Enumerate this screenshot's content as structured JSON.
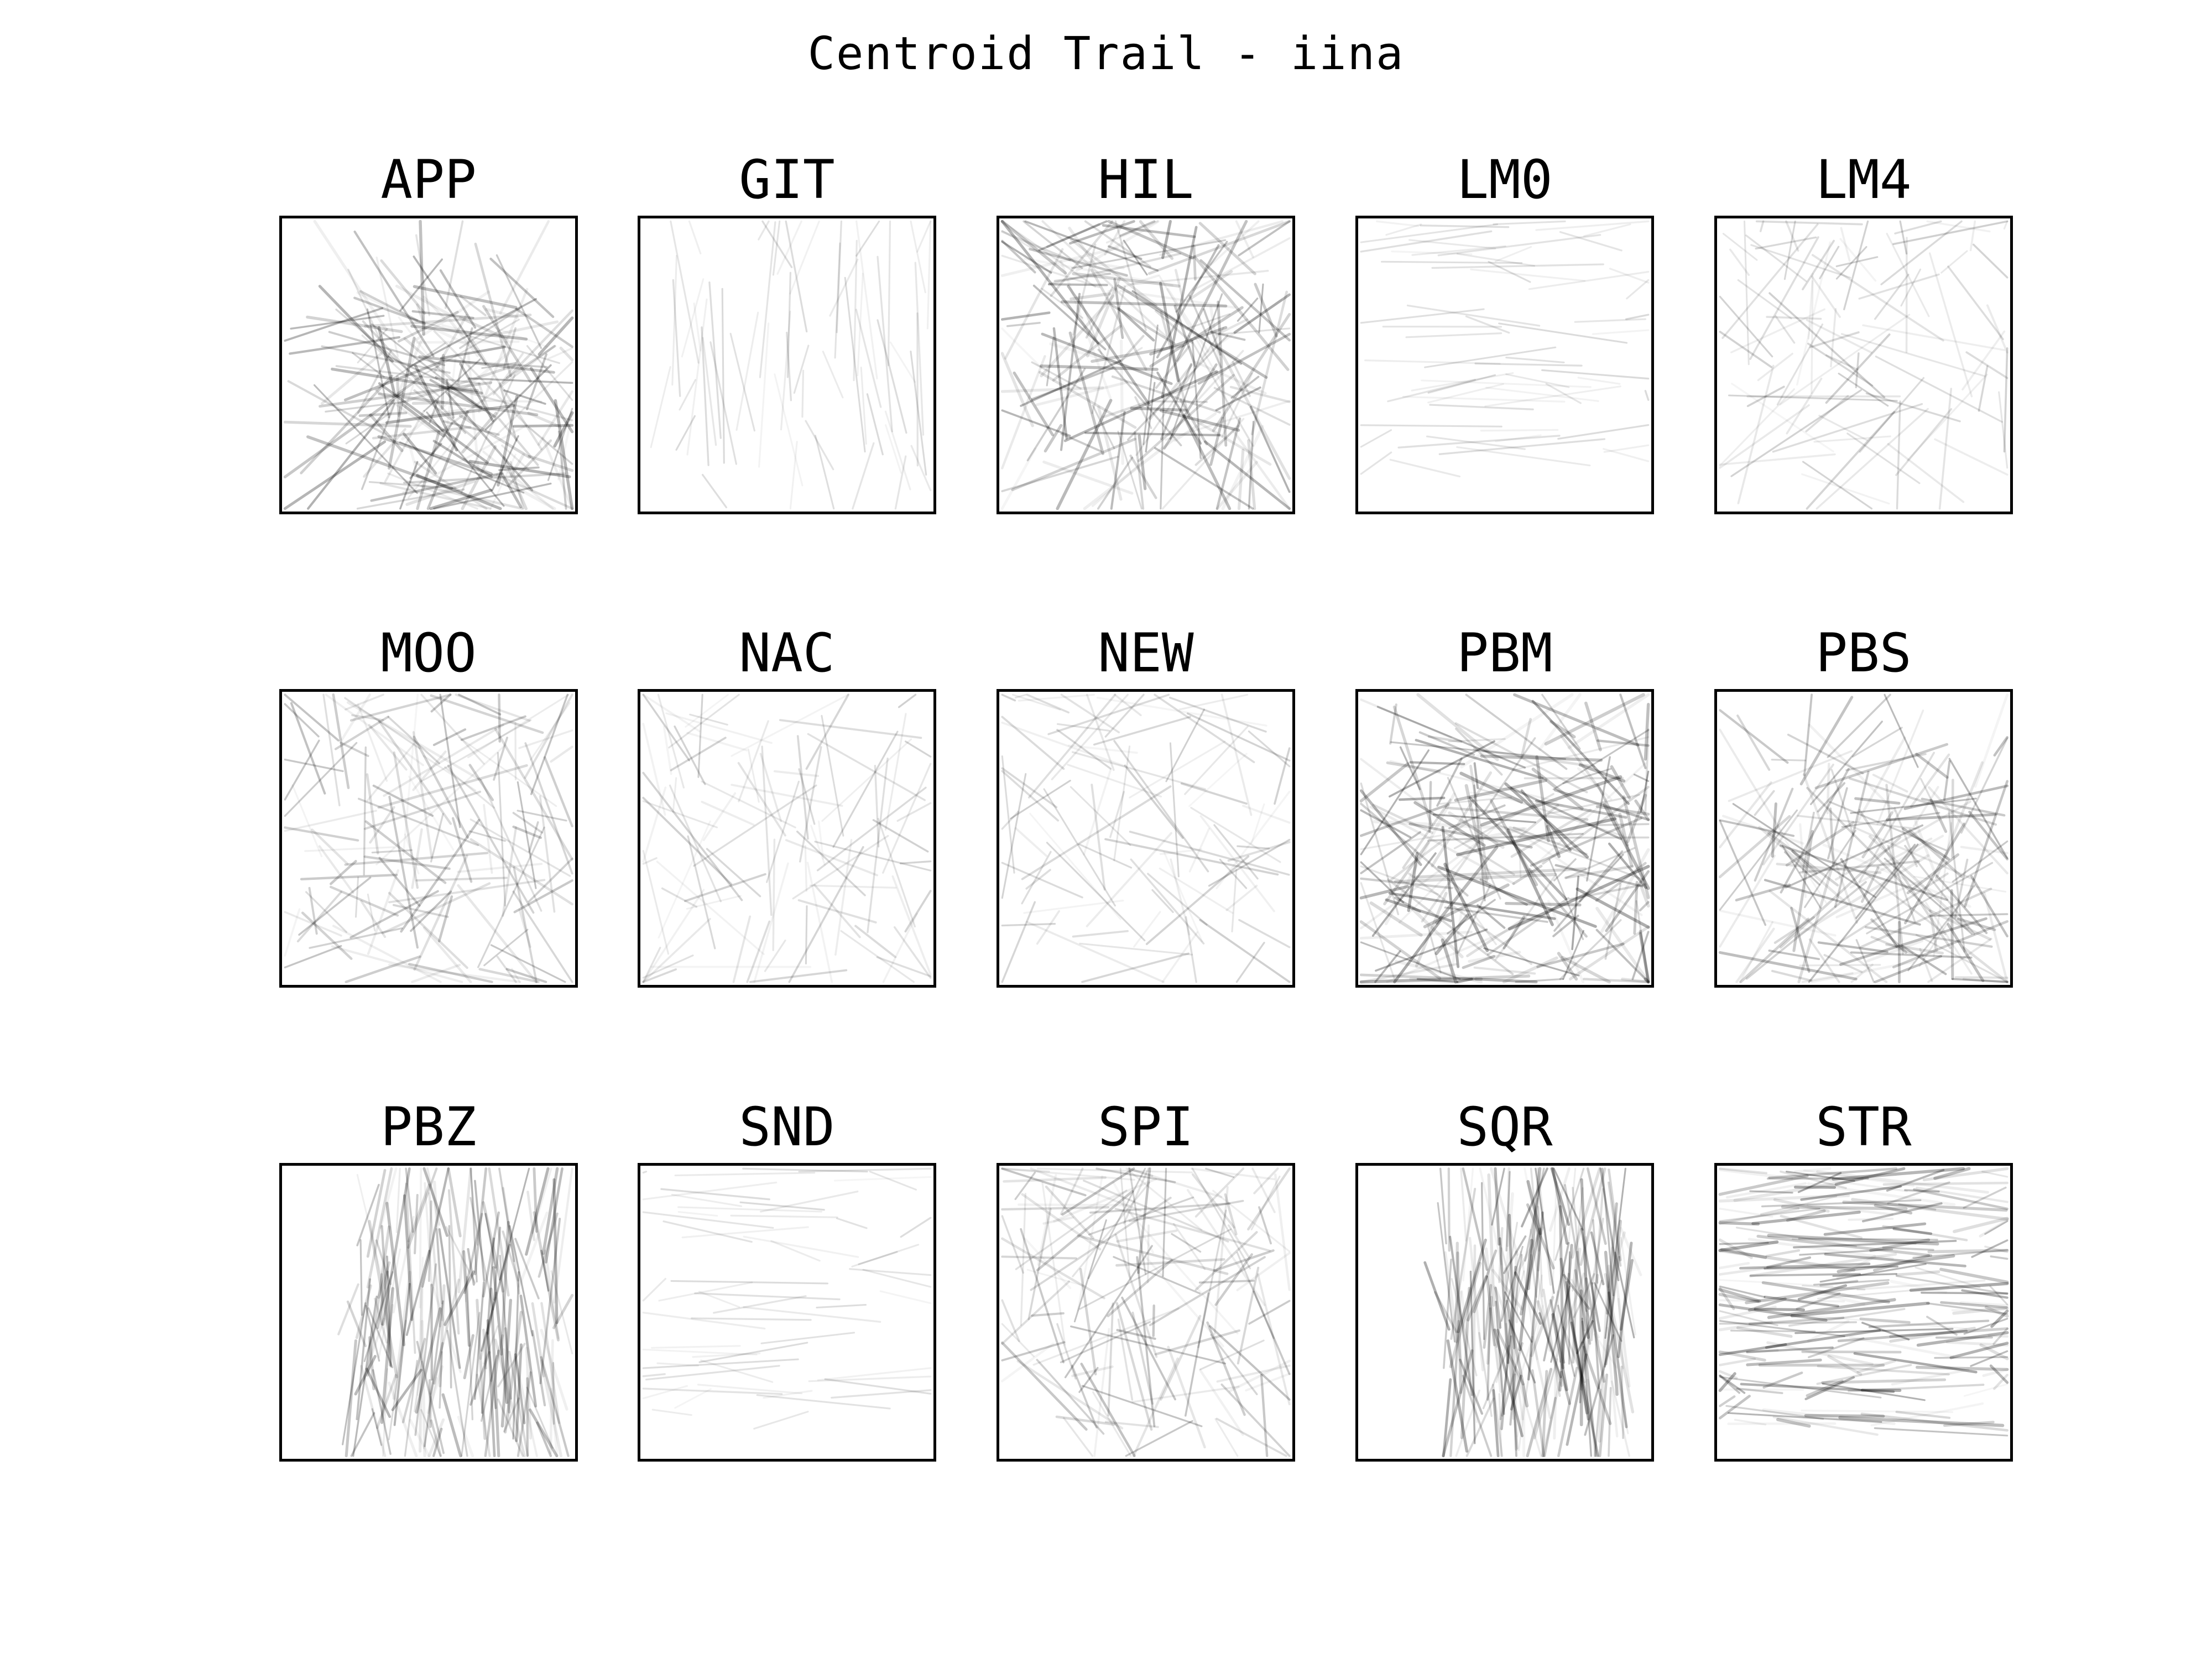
{
  "figure": {
    "title": "Centroid Trail - iina"
  },
  "colors": {
    "trail": "#000000",
    "frame": "#000000",
    "background": "#ffffff"
  },
  "chart_data": {
    "type": "line",
    "title": "Centroid Trail - iina",
    "xlabel": "",
    "ylabel": "",
    "grid": false,
    "axes_ticks": false,
    "layout": "3 rows x 5 columns of small multiples",
    "panels": [
      {
        "label": "APP",
        "density": 0.85
      },
      {
        "label": "GIT",
        "density": 0.12
      },
      {
        "label": "HIL",
        "density": 0.85
      },
      {
        "label": "LM0",
        "density": 0.12
      },
      {
        "label": "LM4",
        "density": 0.3
      },
      {
        "label": "MOO",
        "density": 0.55
      },
      {
        "label": "NAC",
        "density": 0.3
      },
      {
        "label": "NEW",
        "density": 0.3
      },
      {
        "label": "PBM",
        "density": 1.0
      },
      {
        "label": "PBS",
        "density": 0.7
      },
      {
        "label": "PBZ",
        "density": 0.8
      },
      {
        "label": "SND",
        "density": 0.1
      },
      {
        "label": "SPI",
        "density": 0.55
      },
      {
        "label": "SQR",
        "density": 0.9
      },
      {
        "label": "STR",
        "density": 0.95
      }
    ]
  }
}
